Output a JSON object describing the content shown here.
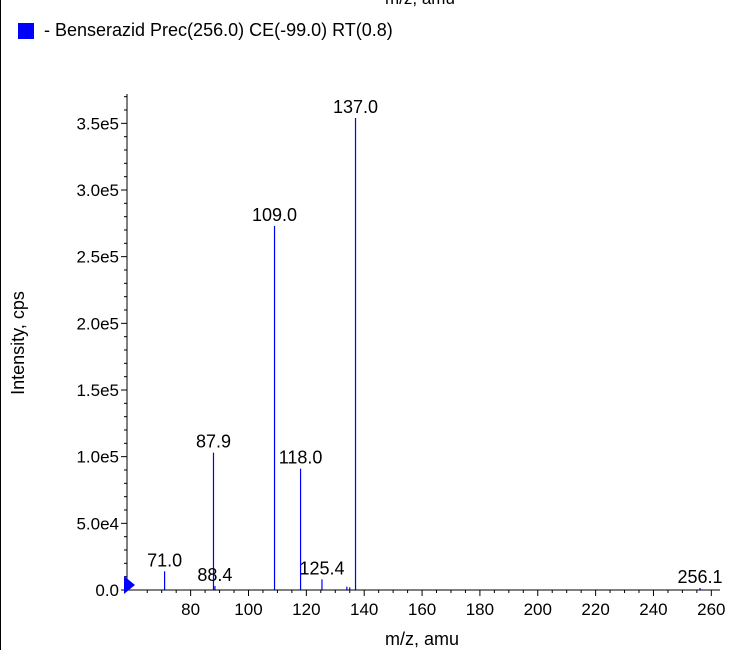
{
  "top_clipped_text": "m/z, amu",
  "legend_text": "- Benserazid Prec(256.0) CE(-99.0) RT(0.8)",
  "colors": {
    "series": "#0000ff",
    "axis": "#000000",
    "marker": "#0000ff"
  },
  "chart_data": {
    "type": "bar",
    "xlabel": "m/z, amu",
    "ylabel": "Intensity, cps",
    "xlim": [
      58,
      263
    ],
    "ylim": [
      0,
      372000
    ],
    "x_ticks": [
      80,
      100,
      120,
      140,
      160,
      180,
      200,
      220,
      240,
      260
    ],
    "x_tick_labels": [
      "80",
      "100",
      "120",
      "140",
      "160",
      "180",
      "200",
      "220",
      "240",
      "260"
    ],
    "y_ticks": [
      0,
      50000,
      100000,
      150000,
      200000,
      250000,
      300000,
      350000
    ],
    "y_tick_labels": [
      "0.0",
      "5.0e4",
      "1.0e5",
      "1.5e5",
      "2.0e5",
      "2.5e5",
      "3.0e5",
      "3.5e5"
    ],
    "series": [
      {
        "peaks": [
          {
            "x": 71.0,
            "y": 14000,
            "label": "71.0"
          },
          {
            "x": 87.9,
            "y": 103000,
            "label": "87.9"
          },
          {
            "x": 88.4,
            "y": 3000,
            "label": "88.4"
          },
          {
            "x": 109.0,
            "y": 273000,
            "label": "109.0"
          },
          {
            "x": 118.0,
            "y": 91000,
            "label": "118.0"
          },
          {
            "x": 125.4,
            "y": 8000,
            "label": "125.4"
          },
          {
            "x": 134.0,
            "y": 2500,
            "label": ""
          },
          {
            "x": 135.0,
            "y": 2000,
            "label": ""
          },
          {
            "x": 137.0,
            "y": 354000,
            "label": "137.0"
          },
          {
            "x": 256.1,
            "y": 1500,
            "label": "256.1"
          }
        ]
      }
    ]
  }
}
